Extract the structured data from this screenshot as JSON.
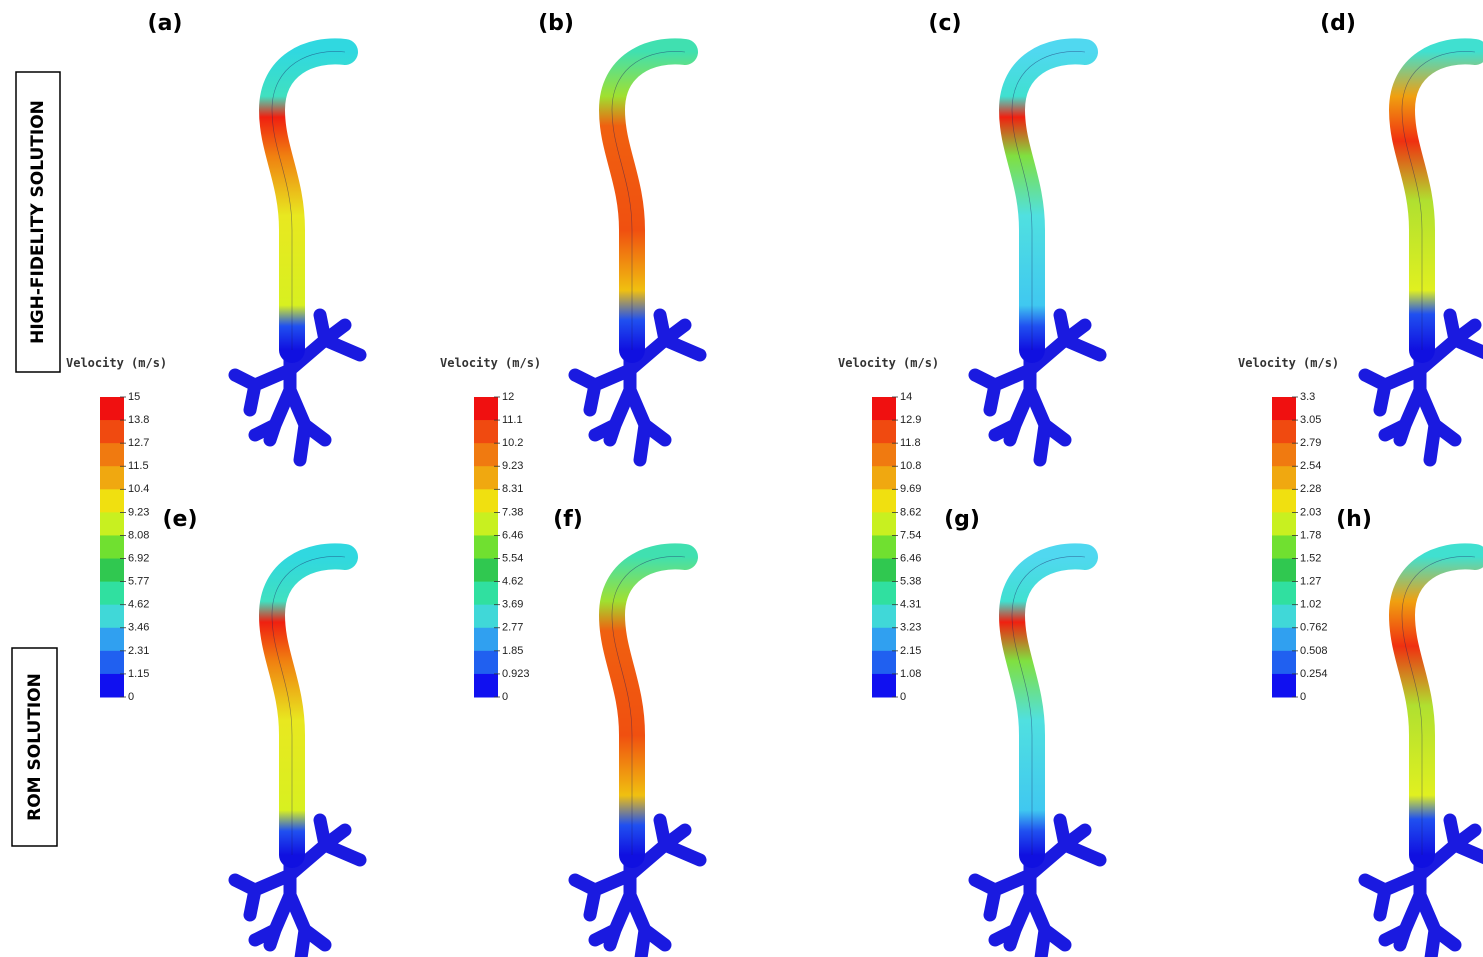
{
  "row_labels": [
    "HIGH-FIDELITY SOLUTION",
    "ROM SOLUTION"
  ],
  "panels": [
    "(a)",
    "(b)",
    "(c)",
    "(d)",
    "(e)",
    "(f)",
    "(g)",
    "(h)"
  ],
  "colorbars": [
    {
      "title": "Velocity (m/s)",
      "ticks": [
        15,
        13.8,
        12.7,
        11.5,
        10.4,
        9.23,
        8.08,
        6.92,
        5.77,
        4.62,
        3.46,
        2.31,
        1.15,
        0
      ]
    },
    {
      "title": "Velocity (m/s)",
      "ticks": [
        12,
        11.1,
        10.2,
        9.23,
        8.31,
        7.38,
        6.46,
        5.54,
        4.62,
        3.69,
        2.77,
        1.85,
        0.923,
        0
      ]
    },
    {
      "title": "Velocity (m/s)",
      "ticks": [
        14,
        12.9,
        11.8,
        10.8,
        9.69,
        8.62,
        7.54,
        6.46,
        5.38,
        4.31,
        3.23,
        2.15,
        1.08,
        0
      ]
    },
    {
      "title": "Velocity (m/s)",
      "ticks": [
        3.3,
        3.05,
        2.79,
        2.54,
        2.28,
        2.03,
        1.78,
        1.52,
        1.27,
        1.02,
        0.762,
        0.508,
        0.254,
        0
      ]
    }
  ]
}
